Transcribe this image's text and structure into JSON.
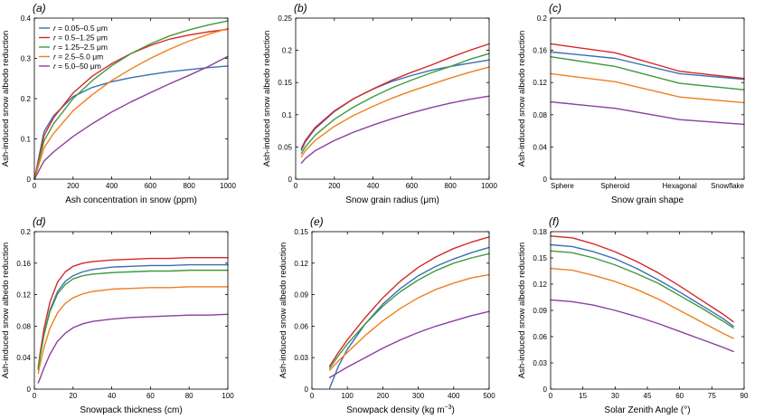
{
  "colors": {
    "s1": "#3a6fb3",
    "s2": "#d62828",
    "s3": "#3f9a3f",
    "s4": "#f07f1e",
    "s5": "#8b3f9c"
  },
  "legend": {
    "prefix": "r",
    "entries": [
      {
        "series": "s1",
        "label": " = 0.05–0.5 μm"
      },
      {
        "series": "s2",
        "label": " = 0.5–1.25 μm"
      },
      {
        "series": "s3",
        "label": " = 1.25–2.5 μm"
      },
      {
        "series": "s4",
        "label": " = 2.5–5.0 μm"
      },
      {
        "series": "s5",
        "label": " = 5.0–50 μm"
      }
    ]
  },
  "chart_data": [
    {
      "panel": "(a)",
      "type": "line",
      "xlabel": "Ash concentration in snow (ppm)",
      "ylabel": "Ash-induced snow albedo reduction",
      "xlim": [
        0,
        1000
      ],
      "ylim": [
        0,
        0.4
      ],
      "xticks": [
        0,
        200,
        400,
        600,
        800,
        1000
      ],
      "yticks": [
        0,
        0.1,
        0.2,
        0.3,
        0.4
      ],
      "ytick_labels": [
        "0",
        "0.1",
        "0.2",
        "0.3",
        "0.4"
      ],
      "legend": "top-left",
      "x": [
        0,
        50,
        100,
        200,
        300,
        400,
        500,
        600,
        700,
        800,
        900,
        1000
      ],
      "series": [
        {
          "id": "s1",
          "values": [
            0,
            0.118,
            0.158,
            0.205,
            0.228,
            0.242,
            0.252,
            0.26,
            0.267,
            0.272,
            0.277,
            0.281
          ]
        },
        {
          "id": "s2",
          "values": [
            0,
            0.108,
            0.153,
            0.214,
            0.256,
            0.287,
            0.312,
            0.332,
            0.348,
            0.358,
            0.366,
            0.372
          ]
        },
        {
          "id": "s3",
          "values": [
            0,
            0.095,
            0.138,
            0.2,
            0.245,
            0.282,
            0.312,
            0.336,
            0.356,
            0.371,
            0.383,
            0.393
          ]
        },
        {
          "id": "s4",
          "values": [
            0,
            0.078,
            0.114,
            0.17,
            0.21,
            0.245,
            0.274,
            0.3,
            0.323,
            0.343,
            0.36,
            0.374
          ]
        },
        {
          "id": "s5",
          "values": [
            0,
            0.045,
            0.068,
            0.106,
            0.138,
            0.167,
            0.192,
            0.215,
            0.237,
            0.258,
            0.28,
            0.305
          ]
        }
      ]
    },
    {
      "panel": "(b)",
      "type": "line",
      "xlabel": "Snow grain radius (μm)",
      "ylabel": "Ash-induced snow albedo reduction",
      "xlim": [
        0,
        1000
      ],
      "ylim": [
        0,
        0.25
      ],
      "xticks": [
        0,
        200,
        400,
        600,
        800,
        1000
      ],
      "yticks": [
        0,
        0.05,
        0.1,
        0.15,
        0.2,
        0.25
      ],
      "ytick_labels": [
        "0",
        "0.05",
        "0.1",
        "0.15",
        "0.2",
        "0.25"
      ],
      "x": [
        30,
        50,
        100,
        200,
        300,
        400,
        500,
        600,
        700,
        800,
        900,
        1000
      ],
      "series": [
        {
          "id": "s1",
          "values": [
            0.045,
            0.058,
            0.078,
            0.105,
            0.125,
            0.14,
            0.152,
            0.161,
            0.169,
            0.175,
            0.18,
            0.185
          ]
        },
        {
          "id": "s2",
          "values": [
            0.048,
            0.06,
            0.08,
            0.106,
            0.125,
            0.14,
            0.154,
            0.166,
            0.177,
            0.189,
            0.2,
            0.21
          ]
        },
        {
          "id": "s3",
          "values": [
            0.04,
            0.05,
            0.068,
            0.093,
            0.112,
            0.128,
            0.142,
            0.154,
            0.165,
            0.175,
            0.186,
            0.195
          ]
        },
        {
          "id": "s4",
          "values": [
            0.035,
            0.044,
            0.06,
            0.082,
            0.099,
            0.113,
            0.126,
            0.137,
            0.147,
            0.157,
            0.166,
            0.174
          ]
        },
        {
          "id": "s5",
          "values": [
            0.025,
            0.032,
            0.044,
            0.06,
            0.073,
            0.084,
            0.094,
            0.103,
            0.111,
            0.118,
            0.124,
            0.129
          ]
        }
      ]
    },
    {
      "panel": "(c)",
      "type": "line",
      "xlabel": "Snow grain shape",
      "ylabel": "Ash-induced snow albedo reduction",
      "categories": [
        "Sphere",
        "Spheroid",
        "Hexagonal",
        "Snowflake"
      ],
      "ylim": [
        0,
        0.2
      ],
      "yticks": [
        0,
        0.04,
        0.08,
        0.12,
        0.16,
        0.2
      ],
      "ytick_labels": [
        "0",
        "0.04",
        "0.08",
        "0.12",
        "0.16",
        "0.2"
      ],
      "series": [
        {
          "id": "s1",
          "values": [
            0.158,
            0.15,
            0.131,
            0.124
          ]
        },
        {
          "id": "s2",
          "values": [
            0.168,
            0.157,
            0.134,
            0.125
          ]
        },
        {
          "id": "s3",
          "values": [
            0.152,
            0.14,
            0.119,
            0.111
          ]
        },
        {
          "id": "s4",
          "values": [
            0.131,
            0.121,
            0.102,
            0.095
          ]
        },
        {
          "id": "s5",
          "values": [
            0.096,
            0.088,
            0.074,
            0.068
          ]
        }
      ]
    },
    {
      "panel": "(d)",
      "type": "line",
      "xlabel": "Snowpack thickness (cm)",
      "ylabel": "Ash-induced snow albedo reduction",
      "xlim": [
        0,
        100
      ],
      "ylim": [
        0,
        0.2
      ],
      "xticks": [
        0,
        20,
        40,
        60,
        80,
        100
      ],
      "yticks": [
        0,
        0.04,
        0.08,
        0.12,
        0.16,
        0.2
      ],
      "ytick_labels": [
        "0",
        "0.04",
        "0.08",
        "0.12",
        "0.16",
        "0.2"
      ],
      "x": [
        2,
        3,
        5,
        8,
        12,
        16,
        20,
        25,
        30,
        40,
        50,
        60,
        70,
        80,
        90,
        100
      ],
      "series": [
        {
          "id": "s1",
          "values": [
            0.025,
            0.042,
            0.07,
            0.1,
            0.124,
            0.137,
            0.144,
            0.149,
            0.152,
            0.155,
            0.156,
            0.157,
            0.157,
            0.158,
            0.158,
            0.158
          ]
        },
        {
          "id": "s2",
          "values": [
            0.028,
            0.046,
            0.077,
            0.11,
            0.136,
            0.149,
            0.156,
            0.16,
            0.162,
            0.164,
            0.165,
            0.166,
            0.166,
            0.167,
            0.167,
            0.167
          ]
        },
        {
          "id": "s3",
          "values": [
            0.026,
            0.042,
            0.069,
            0.098,
            0.121,
            0.133,
            0.14,
            0.144,
            0.146,
            0.148,
            0.149,
            0.15,
            0.15,
            0.151,
            0.151,
            0.151
          ]
        },
        {
          "id": "s4",
          "values": [
            0.02,
            0.032,
            0.053,
            0.077,
            0.097,
            0.109,
            0.116,
            0.121,
            0.124,
            0.127,
            0.128,
            0.129,
            0.129,
            0.13,
            0.13,
            0.13
          ]
        },
        {
          "id": "s5",
          "values": [
            0.008,
            0.014,
            0.027,
            0.044,
            0.061,
            0.071,
            0.078,
            0.083,
            0.086,
            0.089,
            0.091,
            0.092,
            0.093,
            0.094,
            0.094,
            0.095
          ]
        }
      ]
    },
    {
      "panel": "(e)",
      "type": "line",
      "xlabel": "Snowpack density (kg m",
      "xlabel_sup": "−3",
      "xlabel_end": ")",
      "ylabel": "Ash-induced snow albedo reduction",
      "xlim": [
        0,
        500
      ],
      "ylim": [
        0,
        0.15
      ],
      "xticks": [
        0,
        100,
        200,
        300,
        400,
        500
      ],
      "yticks": [
        0,
        0.03,
        0.06,
        0.09,
        0.12,
        0.15
      ],
      "ytick_labels": [
        "0",
        "0.03",
        "0.06",
        "0.09",
        "0.12",
        "0.15"
      ],
      "x": [
        50,
        75,
        100,
        150,
        200,
        250,
        300,
        350,
        400,
        450,
        500
      ],
      "series": [
        {
          "id": "s1",
          "values": [
            0.001,
            0.022,
            0.038,
            0.062,
            0.081,
            0.096,
            0.108,
            0.117,
            0.124,
            0.13,
            0.135
          ]
        },
        {
          "id": "s2",
          "values": [
            0.022,
            0.035,
            0.047,
            0.068,
            0.087,
            0.103,
            0.116,
            0.126,
            0.134,
            0.14,
            0.145
          ]
        },
        {
          "id": "s3",
          "values": [
            0.02,
            0.032,
            0.043,
            0.062,
            0.079,
            0.093,
            0.104,
            0.113,
            0.12,
            0.125,
            0.129
          ]
        },
        {
          "id": "s4",
          "values": [
            0.018,
            0.027,
            0.035,
            0.051,
            0.065,
            0.077,
            0.087,
            0.095,
            0.101,
            0.106,
            0.109
          ]
        },
        {
          "id": "s5",
          "values": [
            0.011,
            0.016,
            0.021,
            0.03,
            0.039,
            0.047,
            0.054,
            0.06,
            0.065,
            0.07,
            0.074
          ]
        }
      ]
    },
    {
      "panel": "(f)",
      "type": "line",
      "xlabel": "Solar Zenith Angle (°)",
      "ylabel": "Ash-induced snow albedo reduction",
      "xlim": [
        0,
        90
      ],
      "ylim": [
        0,
        0.18
      ],
      "xticks": [
        0,
        15,
        30,
        45,
        60,
        75,
        90
      ],
      "yticks": [
        0,
        0.03,
        0.06,
        0.09,
        0.12,
        0.15,
        0.18
      ],
      "ytick_labels": [
        "0",
        "0.03",
        "0.06",
        "0.09",
        "0.12",
        "0.15",
        "0.18"
      ],
      "x": [
        0,
        10,
        20,
        30,
        40,
        50,
        60,
        70,
        80,
        85
      ],
      "series": [
        {
          "id": "s1",
          "values": [
            0.165,
            0.163,
            0.157,
            0.149,
            0.138,
            0.125,
            0.111,
            0.096,
            0.081,
            0.072
          ]
        },
        {
          "id": "s2",
          "values": [
            0.175,
            0.173,
            0.166,
            0.157,
            0.146,
            0.133,
            0.118,
            0.102,
            0.086,
            0.077
          ]
        },
        {
          "id": "s3",
          "values": [
            0.158,
            0.156,
            0.15,
            0.142,
            0.132,
            0.121,
            0.107,
            0.093,
            0.078,
            0.07
          ]
        },
        {
          "id": "s4",
          "values": [
            0.138,
            0.136,
            0.13,
            0.123,
            0.114,
            0.103,
            0.09,
            0.077,
            0.064,
            0.058
          ]
        },
        {
          "id": "s5",
          "values": [
            0.102,
            0.1,
            0.096,
            0.09,
            0.083,
            0.075,
            0.066,
            0.057,
            0.048,
            0.043
          ]
        }
      ]
    }
  ]
}
